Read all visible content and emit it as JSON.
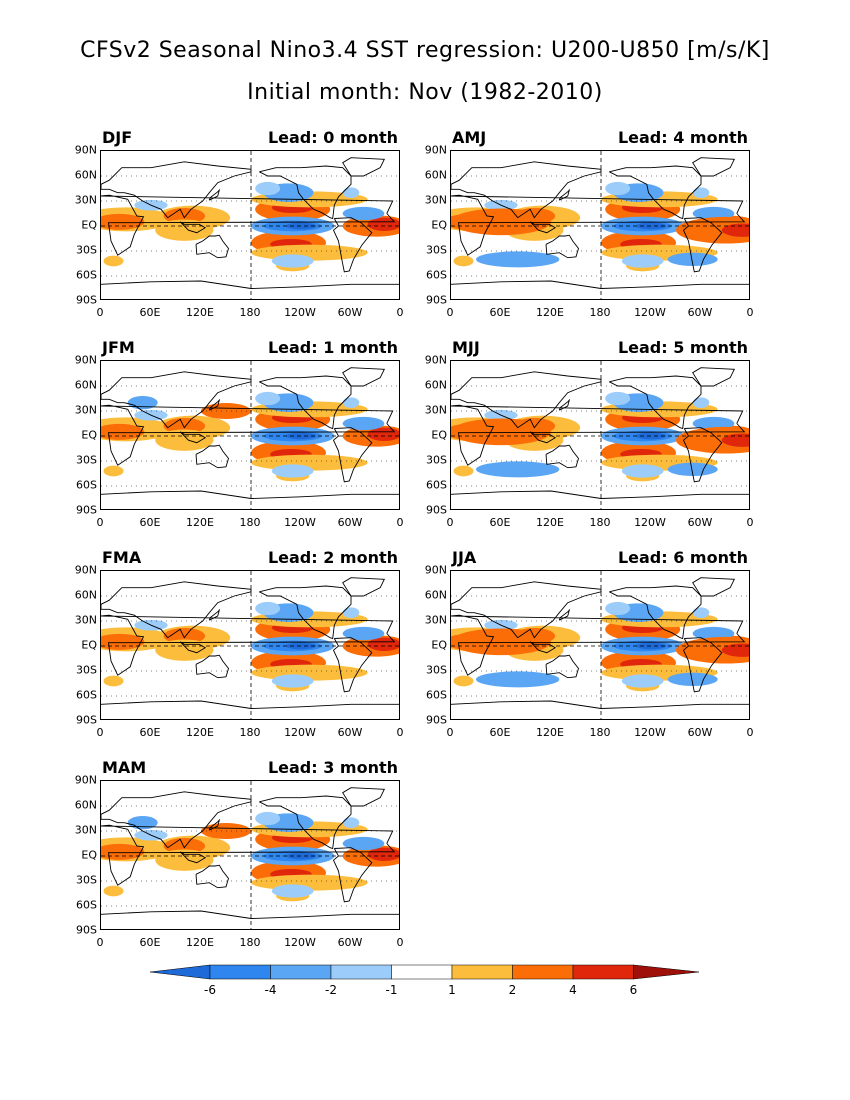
{
  "title": "CFSv2 Seasonal Nino3.4 SST regression: U200-U850 [m/s/K]",
  "subtitle": "Initial month: Nov (1982-2010)",
  "panels": [
    {
      "season": "DJF",
      "lead": "Lead: 0 month"
    },
    {
      "season": "AMJ",
      "lead": "Lead: 4 month"
    },
    {
      "season": "JFM",
      "lead": "Lead: 1 month"
    },
    {
      "season": "MJJ",
      "lead": "Lead: 5 month"
    },
    {
      "season": "FMA",
      "lead": "Lead: 2 month"
    },
    {
      "season": "JJA",
      "lead": "Lead: 6 month"
    },
    {
      "season": "MAM",
      "lead": "Lead: 3 month"
    }
  ],
  "lat_labels": [
    "90N",
    "60N",
    "30N",
    "EQ",
    "30S",
    "60S",
    "90S"
  ],
  "lon_labels": [
    "0",
    "60E",
    "120E",
    "180",
    "120W",
    "60W",
    "0"
  ],
  "colorbar": {
    "labels": [
      "-6",
      "-4",
      "-2",
      "-1",
      "1",
      "2",
      "4",
      "6"
    ],
    "colors": [
      "#1e6ad8",
      "#2f86ee",
      "#5aa6f4",
      "#9ccdfa",
      "#ffffff",
      "#fdbd3c",
      "#fb6d06",
      "#e0260b",
      "#a0100a"
    ]
  }
}
